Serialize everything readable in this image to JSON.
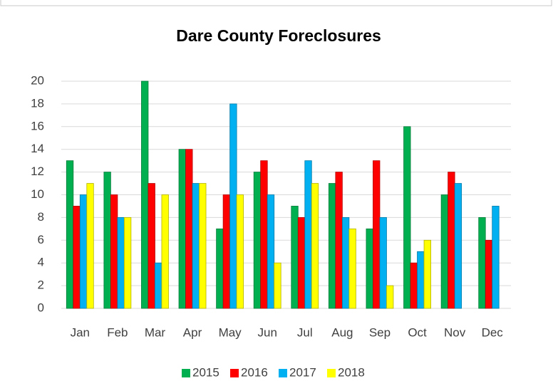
{
  "chart_data": {
    "type": "bar",
    "title": "Dare County Foreclosures",
    "categories": [
      "Jan",
      "Feb",
      "Mar",
      "Apr",
      "May",
      "Jun",
      "Jul",
      "Aug",
      "Sep",
      "Oct",
      "Nov",
      "Dec"
    ],
    "series": [
      {
        "name": "2015",
        "color": "#00b050",
        "values": [
          13,
          12,
          20,
          14,
          7,
          12,
          9,
          11,
          7,
          16,
          10,
          8
        ]
      },
      {
        "name": "2016",
        "color": "#ff0000",
        "values": [
          9,
          10,
          11,
          14,
          10,
          13,
          8,
          12,
          13,
          4,
          12,
          6
        ]
      },
      {
        "name": "2017",
        "color": "#00b0f0",
        "values": [
          10,
          8,
          4,
          11,
          18,
          10,
          13,
          8,
          8,
          5,
          11,
          9
        ]
      },
      {
        "name": "2018",
        "color": "#ffff00",
        "values": [
          11,
          8,
          10,
          11,
          10,
          4,
          11,
          7,
          2,
          6,
          null,
          null
        ]
      }
    ],
    "ylim": [
      0,
      20
    ],
    "yticks": [
      0,
      2,
      4,
      6,
      8,
      10,
      12,
      14,
      16,
      18,
      20
    ],
    "grid": true,
    "legend": "bottom"
  }
}
